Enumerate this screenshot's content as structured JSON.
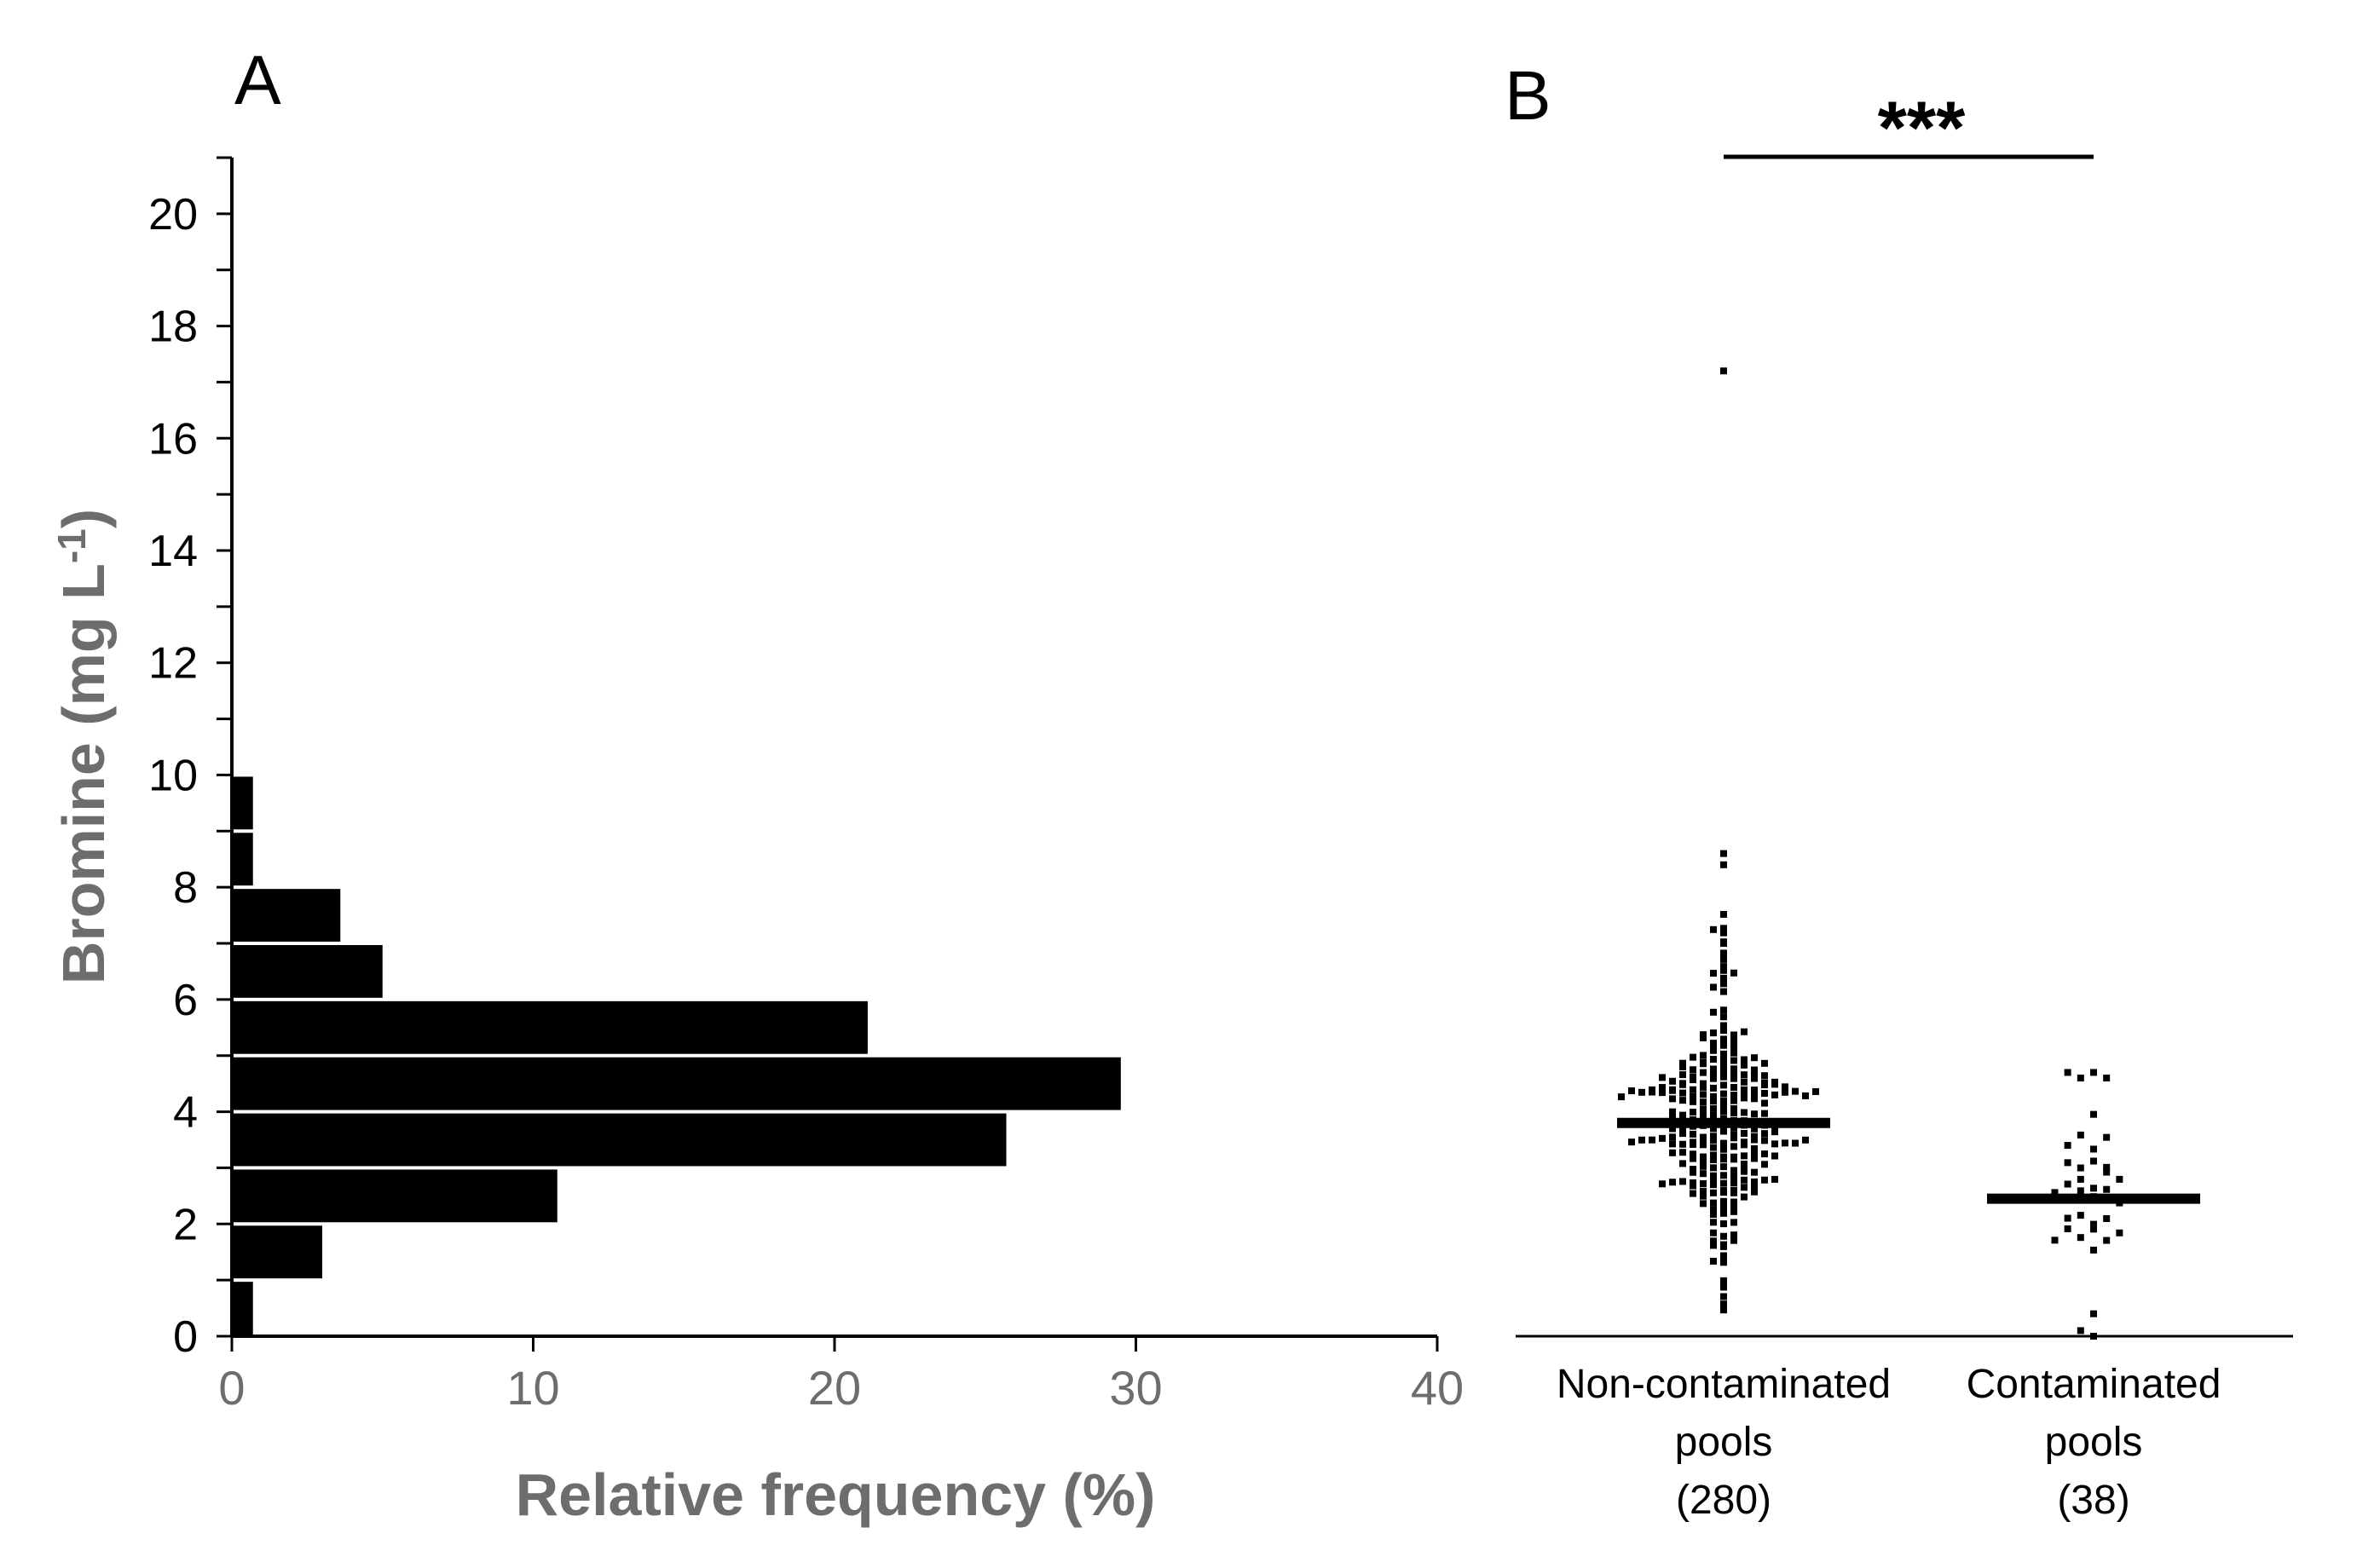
{
  "chart_data": [
    {
      "panel": "A",
      "type": "bar",
      "orientation": "horizontal",
      "xlabel": "Relative frequency (%)",
      "ylabel": "Bromine (mg L⁻¹)",
      "xlim": [
        0,
        40
      ],
      "ylim": [
        0,
        21
      ],
      "xticks": [
        "0",
        "10",
        "20",
        "30",
        "40"
      ],
      "yticks": [
        "0",
        "2",
        "4",
        "6",
        "8",
        "10",
        "12",
        "14",
        "16",
        "18",
        "20"
      ],
      "bins": [
        {
          "from": 0,
          "to": 1,
          "value": 0.7
        },
        {
          "from": 1,
          "to": 2,
          "value": 3.0
        },
        {
          "from": 2,
          "to": 3,
          "value": 10.8
        },
        {
          "from": 3,
          "to": 4,
          "value": 25.7
        },
        {
          "from": 4,
          "to": 5,
          "value": 29.5
        },
        {
          "from": 5,
          "to": 6,
          "value": 21.1
        },
        {
          "from": 6,
          "to": 7,
          "value": 5.0
        },
        {
          "from": 7,
          "to": 8,
          "value": 3.6
        },
        {
          "from": 8,
          "to": 9,
          "value": 0.7
        },
        {
          "from": 9,
          "to": 10,
          "value": 0.7
        }
      ],
      "bar_color": "#000000",
      "grid": false
    },
    {
      "panel": "B",
      "type": "scatter",
      "ylim": [
        0,
        21
      ],
      "groups": [
        {
          "label_lines": [
            "Non-contaminated",
            "pools",
            "(280)"
          ],
          "n": 280,
          "median": 3.8,
          "min": 0.4,
          "max": 17.2
        },
        {
          "label_lines": [
            "Contaminated",
            "pools",
            "(38)"
          ],
          "n": 38,
          "median": 2.45,
          "min": 0.0,
          "max": 4.7
        }
      ],
      "significance": "***",
      "marker_color": "#000000"
    }
  ]
}
